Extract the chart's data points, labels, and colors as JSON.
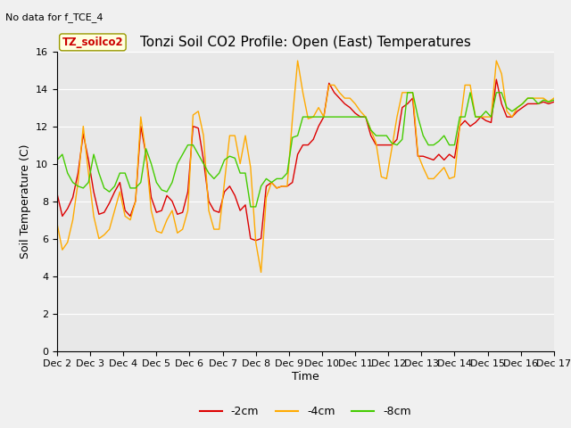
{
  "title": "Tonzi Soil CO2 Profile: Open (East) Temperatures",
  "subtitle": "No data for f_TCE_4",
  "ylabel": "Soil Temperature (C)",
  "xlabel": "Time",
  "legend_label": "TZ_soilco2",
  "ylim": [
    0,
    16
  ],
  "yticks": [
    0,
    2,
    4,
    6,
    8,
    10,
    12,
    14,
    16
  ],
  "xtick_labels": [
    "Dec 2",
    "Dec 3",
    "Dec 4",
    "Dec 5",
    "Dec 6",
    "Dec 7",
    "Dec 8",
    "Dec 9",
    "Dec 10",
    "Dec 11",
    "Dec 12",
    "Dec 13",
    "Dec 14",
    "Dec 15",
    "Dec 16",
    "Dec 17"
  ],
  "line_colors": {
    "2cm": "#dd0000",
    "4cm": "#ffaa00",
    "8cm": "#44cc00"
  },
  "series_labels": [
    "-2cm",
    "-4cm",
    "-8cm"
  ],
  "bg_color": "#e8e8e8",
  "title_fontsize": 11,
  "axis_fontsize": 9,
  "tick_fontsize": 8,
  "t_2cm": [
    8.4,
    7.2,
    7.6,
    8.2,
    9.5,
    11.6,
    10.2,
    8.5,
    7.3,
    7.4,
    7.9,
    8.5,
    9.0,
    7.5,
    7.2,
    8.0,
    12.0,
    10.5,
    8.2,
    7.4,
    7.5,
    8.3,
    8.0,
    7.3,
    7.4,
    8.5,
    12.0,
    11.9,
    10.2,
    8.0,
    7.5,
    7.4,
    8.5,
    8.8,
    8.3,
    7.5,
    7.8,
    6.0,
    5.9,
    6.0,
    8.8,
    9.0,
    8.7,
    8.8,
    8.8,
    9.0,
    10.5,
    11.0,
    11.0,
    11.3,
    12.0,
    12.5,
    14.3,
    13.8,
    13.5,
    13.2,
    13.0,
    12.7,
    12.5,
    12.5,
    11.5,
    11.0,
    11.0,
    11.0,
    11.0,
    11.3,
    13.0,
    13.2,
    13.5,
    10.4,
    10.4,
    10.3,
    10.2,
    10.5,
    10.2,
    10.5,
    10.3,
    12.0,
    12.3,
    12.0,
    12.2,
    12.5,
    12.3,
    12.2,
    14.5,
    13.2,
    12.5,
    12.5,
    12.8,
    13.0,
    13.2,
    13.2,
    13.2,
    13.3,
    13.2,
    13.3
  ],
  "t_4cm": [
    6.8,
    5.4,
    5.8,
    7.0,
    9.0,
    12.0,
    9.5,
    7.2,
    6.0,
    6.2,
    6.5,
    7.5,
    8.5,
    7.2,
    7.0,
    8.0,
    12.5,
    10.5,
    7.5,
    6.4,
    6.3,
    7.0,
    7.5,
    6.3,
    6.5,
    7.5,
    12.6,
    12.8,
    11.5,
    7.5,
    6.5,
    6.5,
    9.0,
    11.5,
    11.5,
    10.0,
    11.5,
    9.8,
    5.8,
    4.2,
    8.2,
    9.0,
    8.7,
    8.8,
    8.8,
    12.4,
    15.5,
    13.8,
    12.4,
    12.5,
    13.0,
    12.5,
    14.2,
    14.2,
    13.8,
    13.5,
    13.5,
    13.2,
    12.8,
    12.5,
    11.8,
    11.1,
    9.3,
    9.2,
    10.8,
    12.5,
    13.8,
    13.8,
    13.8,
    10.5,
    9.8,
    9.2,
    9.2,
    9.5,
    9.8,
    9.2,
    9.3,
    12.0,
    14.2,
    14.2,
    12.5,
    12.5,
    12.5,
    12.5,
    15.5,
    14.8,
    12.8,
    12.5,
    13.0,
    13.2,
    13.5,
    13.5,
    13.5,
    13.5,
    13.3,
    13.5
  ],
  "t_8cm": [
    10.2,
    10.5,
    9.5,
    9.0,
    8.8,
    8.7,
    9.0,
    10.5,
    9.5,
    8.7,
    8.5,
    8.8,
    9.5,
    9.5,
    8.7,
    8.7,
    9.0,
    10.8,
    10.0,
    9.0,
    8.6,
    8.5,
    9.0,
    10.0,
    10.5,
    11.0,
    11.0,
    10.5,
    10.0,
    9.5,
    9.2,
    9.5,
    10.2,
    10.4,
    10.3,
    9.5,
    9.5,
    7.7,
    7.7,
    8.8,
    9.2,
    9.0,
    9.2,
    9.2,
    9.5,
    11.4,
    11.5,
    12.5,
    12.5,
    12.5,
    12.5,
    12.5,
    12.5,
    12.5,
    12.5,
    12.5,
    12.5,
    12.5,
    12.5,
    12.5,
    11.8,
    11.5,
    11.5,
    11.5,
    11.1,
    11.0,
    11.3,
    13.8,
    13.8,
    12.5,
    11.5,
    11.0,
    11.0,
    11.2,
    11.5,
    11.0,
    11.0,
    12.5,
    12.5,
    13.8,
    12.5,
    12.5,
    12.8,
    12.5,
    13.8,
    13.8,
    13.0,
    12.8,
    13.0,
    13.2,
    13.5,
    13.5,
    13.2,
    13.4,
    13.3,
    13.4
  ]
}
